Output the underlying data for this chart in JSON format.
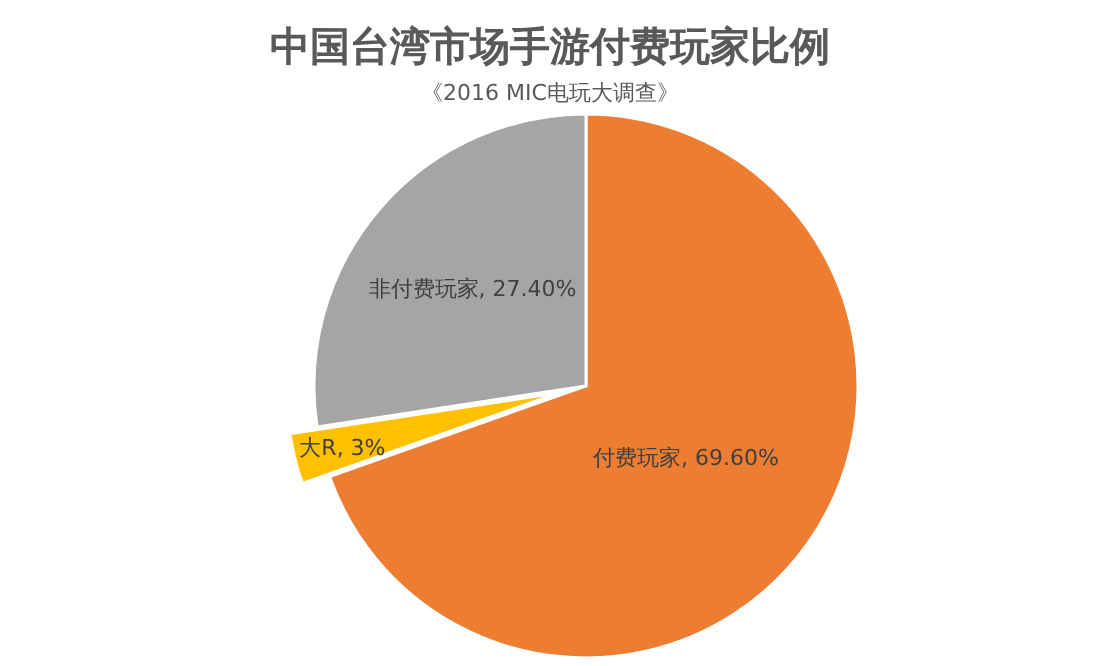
{
  "chart_data": {
    "type": "pie",
    "title": "中国台湾市场手游付费玩家比例",
    "subtitle": "《2016 MIC电玩大调查》",
    "categories": [
      "付费玩家",
      "大R",
      "非付费玩家"
    ],
    "values": [
      69.6,
      3,
      27.4
    ],
    "value_labels": [
      "69.60%",
      "3%",
      "27.40%"
    ],
    "colors": [
      "#ed7d31",
      "#ffc000",
      "#a5a5a5"
    ]
  }
}
